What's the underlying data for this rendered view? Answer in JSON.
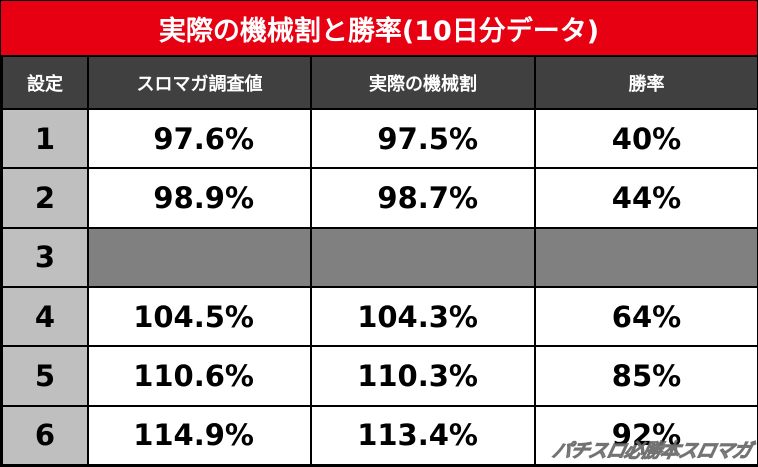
{
  "title": "実際の機械割と勝率(10日分データ)",
  "headers": [
    "設定",
    "スロマガ調査値",
    "実際の機械割",
    "勝率"
  ],
  "rows": [
    {
      "setting": "1",
      "survey": "97.6%",
      "actual": "97.5%",
      "win": "40%"
    },
    {
      "setting": "2",
      "survey": "98.9%",
      "actual": "98.7%",
      "win": "44%"
    },
    {
      "setting": "3",
      "survey": "",
      "actual": "",
      "win": ""
    },
    {
      "setting": "4",
      "survey": "104.5%",
      "actual": "104.3%",
      "win": "64%"
    },
    {
      "setting": "5",
      "survey": "110.6%",
      "actual": "110.3%",
      "win": "85%"
    },
    {
      "setting": "6",
      "survey": "114.9%",
      "actual": "113.4%",
      "win": "92%"
    }
  ],
  "watermark": "パチスロ必勝本スロマガ",
  "colors": {
    "title_bg": "#e60012",
    "header_bg": "#404040",
    "setting_bg": "#bfbfbf",
    "blank_bg": "#808080"
  }
}
